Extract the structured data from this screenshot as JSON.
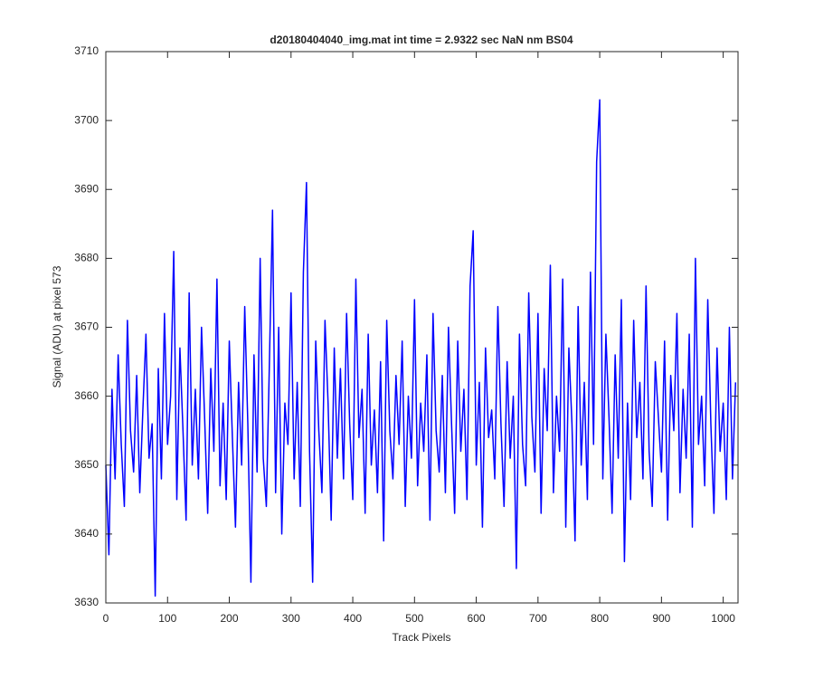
{
  "chart_data": {
    "type": "line",
    "title": "d20180404040_img.mat int time = 2.9322 sec  NaN nm BS04",
    "x_label": "Track Pixels",
    "y_label": "Signal (ADU) at pixel 573",
    "xlim": [
      0,
      1024
    ],
    "ylim": [
      3630,
      3710
    ],
    "xticks": [
      0,
      100,
      200,
      300,
      400,
      500,
      600,
      700,
      800,
      900,
      1000
    ],
    "yticks": [
      3630,
      3640,
      3650,
      3660,
      3670,
      3680,
      3690,
      3700,
      3710
    ],
    "grid": false,
    "x": [
      0,
      5,
      10,
      15,
      20,
      25,
      30,
      35,
      40,
      45,
      50,
      55,
      60,
      65,
      70,
      75,
      80,
      85,
      90,
      95,
      100,
      105,
      110,
      115,
      120,
      125,
      130,
      135,
      140,
      145,
      150,
      155,
      160,
      165,
      170,
      175,
      180,
      185,
      190,
      195,
      200,
      205,
      210,
      215,
      220,
      225,
      230,
      235,
      240,
      245,
      250,
      255,
      260,
      265,
      270,
      275,
      280,
      285,
      290,
      295,
      300,
      305,
      310,
      315,
      320,
      325,
      330,
      335,
      340,
      345,
      350,
      355,
      360,
      365,
      370,
      375,
      380,
      385,
      390,
      395,
      400,
      405,
      410,
      415,
      420,
      425,
      430,
      435,
      440,
      445,
      450,
      455,
      460,
      465,
      470,
      475,
      480,
      485,
      490,
      495,
      500,
      505,
      510,
      515,
      520,
      525,
      530,
      535,
      540,
      545,
      550,
      555,
      560,
      565,
      570,
      575,
      580,
      585,
      590,
      595,
      600,
      605,
      610,
      615,
      620,
      625,
      630,
      635,
      640,
      645,
      650,
      655,
      660,
      665,
      670,
      675,
      680,
      685,
      690,
      695,
      700,
      705,
      710,
      715,
      720,
      725,
      730,
      735,
      740,
      745,
      750,
      755,
      760,
      765,
      770,
      775,
      780,
      785,
      790,
      795,
      800,
      805,
      810,
      815,
      820,
      825,
      830,
      835,
      840,
      845,
      850,
      855,
      860,
      865,
      870,
      875,
      880,
      885,
      890,
      895,
      900,
      905,
      910,
      915,
      920,
      925,
      930,
      935,
      940,
      945,
      950,
      955,
      960,
      965,
      970,
      975,
      980,
      985,
      990,
      995,
      1000,
      1005,
      1010,
      1015,
      1020
    ],
    "series": [
      {
        "color": "#0000ff",
        "values": [
          3650,
          3637,
          3661,
          3648,
          3666,
          3653,
          3644,
          3671,
          3655,
          3649,
          3663,
          3646,
          3658,
          3669,
          3651,
          3656,
          3631,
          3664,
          3648,
          3672,
          3653,
          3660,
          3681,
          3645,
          3667,
          3655,
          3642,
          3675,
          3650,
          3661,
          3648,
          3670,
          3657,
          3643,
          3664,
          3652,
          3677,
          3647,
          3659,
          3645,
          3668,
          3654,
          3641,
          3662,
          3650,
          3673,
          3656,
          3633,
          3666,
          3649,
          3680,
          3651,
          3644,
          3665,
          3687,
          3646,
          3670,
          3640,
          3659,
          3653,
          3675,
          3648,
          3662,
          3644,
          3678,
          3691,
          3652,
          3633,
          3668,
          3655,
          3646,
          3671,
          3659,
          3642,
          3667,
          3651,
          3664,
          3648,
          3672,
          3656,
          3645,
          3677,
          3654,
          3661,
          3643,
          3669,
          3650,
          3658,
          3646,
          3665,
          3639,
          3671,
          3655,
          3648,
          3663,
          3653,
          3668,
          3644,
          3660,
          3651,
          3674,
          3647,
          3659,
          3652,
          3666,
          3642,
          3672,
          3655,
          3649,
          3663,
          3646,
          3670,
          3656,
          3643,
          3668,
          3652,
          3661,
          3645,
          3676,
          3684,
          3650,
          3662,
          3641,
          3667,
          3654,
          3658,
          3648,
          3673,
          3656,
          3644,
          3665,
          3651,
          3660,
          3635,
          3669,
          3653,
          3647,
          3675,
          3657,
          3649,
          3672,
          3643,
          3664,
          3655,
          3679,
          3646,
          3660,
          3652,
          3677,
          3641,
          3667,
          3656,
          3639,
          3673,
          3650,
          3662,
          3645,
          3678,
          3653,
          3694,
          3703,
          3648,
          3669,
          3657,
          3643,
          3666,
          3651,
          3674,
          3636,
          3659,
          3645,
          3671,
          3654,
          3662,
          3648,
          3676,
          3652,
          3644,
          3665,
          3657,
          3649,
          3668,
          3642,
          3663,
          3655,
          3672,
          3646,
          3661,
          3651,
          3669,
          3641,
          3680,
          3653,
          3660,
          3647,
          3674,
          3656,
          3643,
          3667,
          3652,
          3659,
          3645,
          3670,
          3648,
          3662
        ]
      }
    ]
  }
}
